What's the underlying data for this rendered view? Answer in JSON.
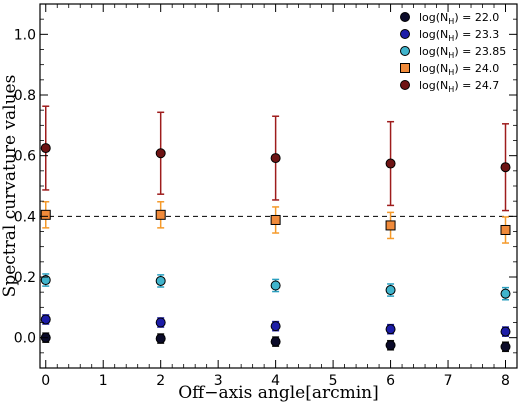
{
  "chart_data": {
    "type": "scatter",
    "xlabel": "Off−axis angle[arcmin]",
    "ylabel": "Spectral curvature values",
    "xlim": [
      -0.1,
      8.2
    ],
    "ylim": [
      -0.1,
      1.1
    ],
    "xticks": [
      0,
      1,
      2,
      3,
      4,
      5,
      6,
      7,
      8
    ],
    "yticks": [
      0.0,
      0.2,
      0.4,
      0.6,
      0.8,
      1.0
    ],
    "xtick_labels": [
      "0",
      "1",
      "2",
      "3",
      "4",
      "5",
      "6",
      "7",
      "8"
    ],
    "ytick_labels": [
      "0.0",
      "0.2",
      "0.4",
      "0.6",
      "0.8",
      "1.0"
    ],
    "reference_line": {
      "y": 0.4,
      "style": "dashed",
      "color": "#000000"
    },
    "legend_placement": "top-right",
    "series": [
      {
        "name": "log(Nₕ) = 22.0",
        "label_prefix": "log(N",
        "label_sub": "H",
        "label_suffix": ") = 22.0",
        "marker": "circle",
        "fill": "#0b0b2a",
        "error_color": "#111111",
        "x": [
          0,
          2,
          4,
          6,
          8
        ],
        "y": [
          0.0,
          -0.003,
          -0.013,
          -0.025,
          -0.03
        ],
        "err": [
          0.015,
          0.015,
          0.015,
          0.015,
          0.015
        ]
      },
      {
        "name": "log(Nₕ) = 23.3",
        "label_prefix": "log(N",
        "label_sub": "H",
        "label_suffix": ") = 23.3",
        "marker": "circle",
        "fill": "#1c1ca8",
        "error_color": "#1c1ca8",
        "x": [
          0,
          2,
          4,
          6,
          8
        ],
        "y": [
          0.06,
          0.05,
          0.038,
          0.028,
          0.02
        ],
        "err": [
          0.015,
          0.015,
          0.015,
          0.015,
          0.015
        ]
      },
      {
        "name": "log(Nₕ) = 23.85",
        "label_prefix": "log(N",
        "label_sub": "H",
        "label_suffix": ") = 23.85",
        "marker": "circle",
        "fill": "#40b4cc",
        "error_color": "#2a9fbf",
        "x": [
          0,
          2,
          4,
          6,
          8
        ],
        "y": [
          0.19,
          0.187,
          0.172,
          0.157,
          0.145
        ],
        "err": [
          0.02,
          0.02,
          0.02,
          0.02,
          0.02
        ]
      },
      {
        "name": "log(Nₕ) = 24.0",
        "label_prefix": "log(N",
        "label_sub": "H",
        "label_suffix": ") = 24.0",
        "marker": "square",
        "fill": "#f08a3a",
        "error_color": "#f59a2a",
        "x": [
          0,
          2,
          4,
          6,
          8
        ],
        "y": [
          0.405,
          0.405,
          0.388,
          0.37,
          0.355
        ],
        "err": [
          0.043,
          0.043,
          0.043,
          0.043,
          0.043
        ]
      },
      {
        "name": "log(Nₕ) = 24.7",
        "label_prefix": "log(N",
        "label_sub": "H",
        "label_suffix": ") = 24.7",
        "marker": "circle",
        "fill": "#6e1414",
        "error_color": "#9e1c1c",
        "x": [
          0,
          2,
          4,
          6,
          8
        ],
        "y": [
          0.625,
          0.608,
          0.592,
          0.574,
          0.562
        ],
        "err": [
          0.138,
          0.135,
          0.138,
          0.138,
          0.143
        ]
      }
    ]
  }
}
